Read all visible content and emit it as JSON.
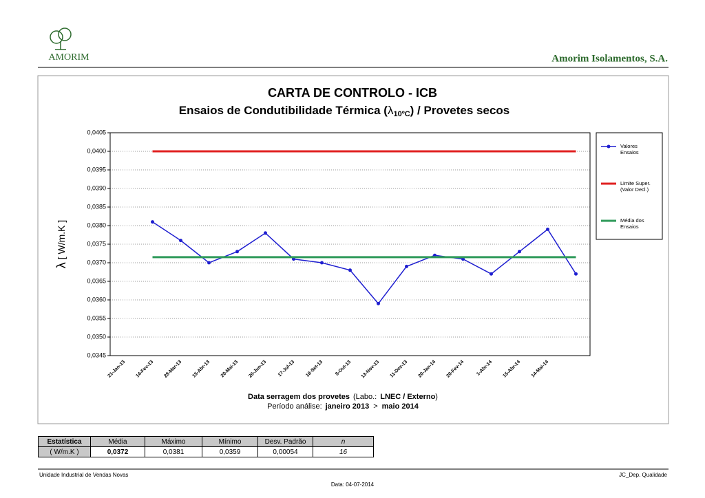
{
  "header": {
    "logo_text": "AMORIM",
    "company": "Amorim Isolamentos, S.A."
  },
  "chart_data": {
    "type": "line",
    "title": "CARTA DE CONTROLO - ICB",
    "subtitle_pre": "Ensaios de Condutibilidade Térmica (",
    "subtitle_symbol": "λ",
    "subtitle_sub": "10ºC",
    "subtitle_post": ") / Provetes secos",
    "y_label_symbol": "λ",
    "y_label_unit": "[ W/m.K ]",
    "x_label_parts": [
      "Data serragem dos provetes",
      "(Labo.:",
      "LNEC / Externo",
      ")"
    ],
    "x_label_line2": [
      "Período análise:",
      "janeiro 2013",
      ">",
      "maio 2014"
    ],
    "categories": [
      "21-Jan-13",
      "14-Fev-13",
      "28-Mar-13",
      "15-Abr-13",
      "20-Mai-13",
      "20-Jun-13",
      "17-Jul-13",
      "18-Set-13",
      "8-Out-13",
      "13-Nov-13",
      "11-Dez-13",
      "20-Jan-14",
      "20-Fev-14",
      "1-Abr-14",
      "15-Abr-14",
      "14-Mai-14",
      null
    ],
    "series": [
      {
        "name": "Valores\nEnsaios",
        "color": "#1f1fd0",
        "markers": true,
        "values": [
          null,
          0.0381,
          0.0376,
          0.037,
          0.0373,
          0.0378,
          0.0371,
          0.037,
          0.0368,
          0.0359,
          0.0369,
          0.0372,
          0.0371,
          0.0367,
          0.0373,
          0.0379,
          0.0367
        ]
      },
      {
        "name": "Limite Super.\n(Valor Decl.)",
        "color": "#e02020",
        "markers": false,
        "values": [
          null,
          0.04,
          0.04,
          0.04,
          0.04,
          0.04,
          0.04,
          0.04,
          0.04,
          0.04,
          0.04,
          0.04,
          0.04,
          0.04,
          0.04,
          0.04,
          0.04
        ]
      },
      {
        "name": "Média dos\nEnsaios",
        "color": "#2e9a5a",
        "markers": false,
        "values": [
          null,
          0.03715,
          0.03715,
          0.03715,
          0.03715,
          0.03715,
          0.03715,
          0.03715,
          0.03715,
          0.03715,
          0.03715,
          0.03715,
          0.03715,
          0.03715,
          0.03715,
          0.03715,
          0.03715
        ]
      }
    ],
    "ylim": [
      0.0345,
      0.0405
    ],
    "yticks": [
      {
        "value": 0.0345,
        "label": "0,0345"
      },
      {
        "value": 0.035,
        "label": "0,0350"
      },
      {
        "value": 0.0355,
        "label": "0,0355"
      },
      {
        "value": 0.036,
        "label": "0,0360"
      },
      {
        "value": 0.0365,
        "label": "0,0365"
      },
      {
        "value": 0.037,
        "label": "0,0370"
      },
      {
        "value": 0.0375,
        "label": "0,0375"
      },
      {
        "value": 0.038,
        "label": "0,0380"
      },
      {
        "value": 0.0385,
        "label": "0,0385"
      },
      {
        "value": 0.039,
        "label": "0,0390"
      },
      {
        "value": 0.0395,
        "label": "0,0395"
      },
      {
        "value": 0.04,
        "label": "0,0400"
      },
      {
        "value": 0.0405,
        "label": "0,0405"
      }
    ],
    "grid": true
  },
  "stats_table": {
    "header": [
      "Estatística",
      "Média",
      "Máximo",
      "Mínimo",
      "Desv. Padrão",
      "n"
    ],
    "row": [
      "( W/m.K )",
      "0,0372",
      "0,0381",
      "0,0359",
      "0,00054",
      "16"
    ]
  },
  "footer": {
    "left": "Unidade Industrial de Vendas Novas",
    "right": "JC_Dep. Qualidade",
    "date": "Data:  04-07-2014"
  }
}
